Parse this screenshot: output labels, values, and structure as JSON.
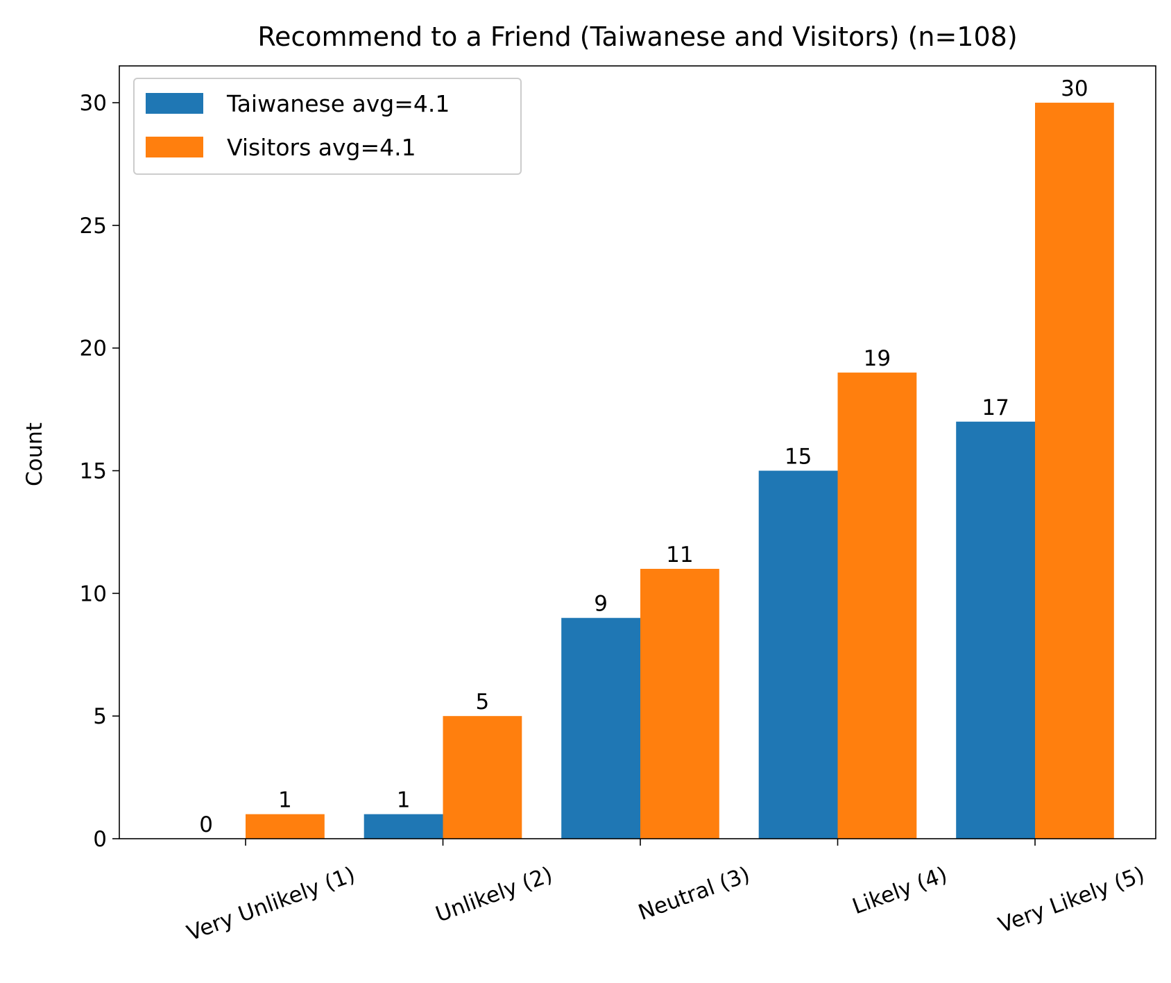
{
  "chart_data": {
    "type": "bar",
    "title": "Recommend to a Friend (Taiwanese and Visitors) (n=108)",
    "xlabel": "",
    "ylabel": "Count",
    "categories": [
      "Very Unlikely (1)",
      "Unlikely (2)",
      "Neutral (3)",
      "Likely (4)",
      "Very Likely (5)"
    ],
    "series": [
      {
        "name": "Taiwanese avg=4.1",
        "color": "#1f77b4",
        "values": [
          0,
          1,
          9,
          15,
          17
        ]
      },
      {
        "name": "Visitors avg=4.1",
        "color": "#ff7f0e",
        "values": [
          1,
          5,
          11,
          19,
          30
        ]
      }
    ],
    "ylim": [
      0,
      31.5
    ],
    "yticks": [
      0,
      5,
      10,
      15,
      20,
      25,
      30
    ],
    "grid": false,
    "legend_position": "top-left",
    "xtick_rotation": -20
  }
}
